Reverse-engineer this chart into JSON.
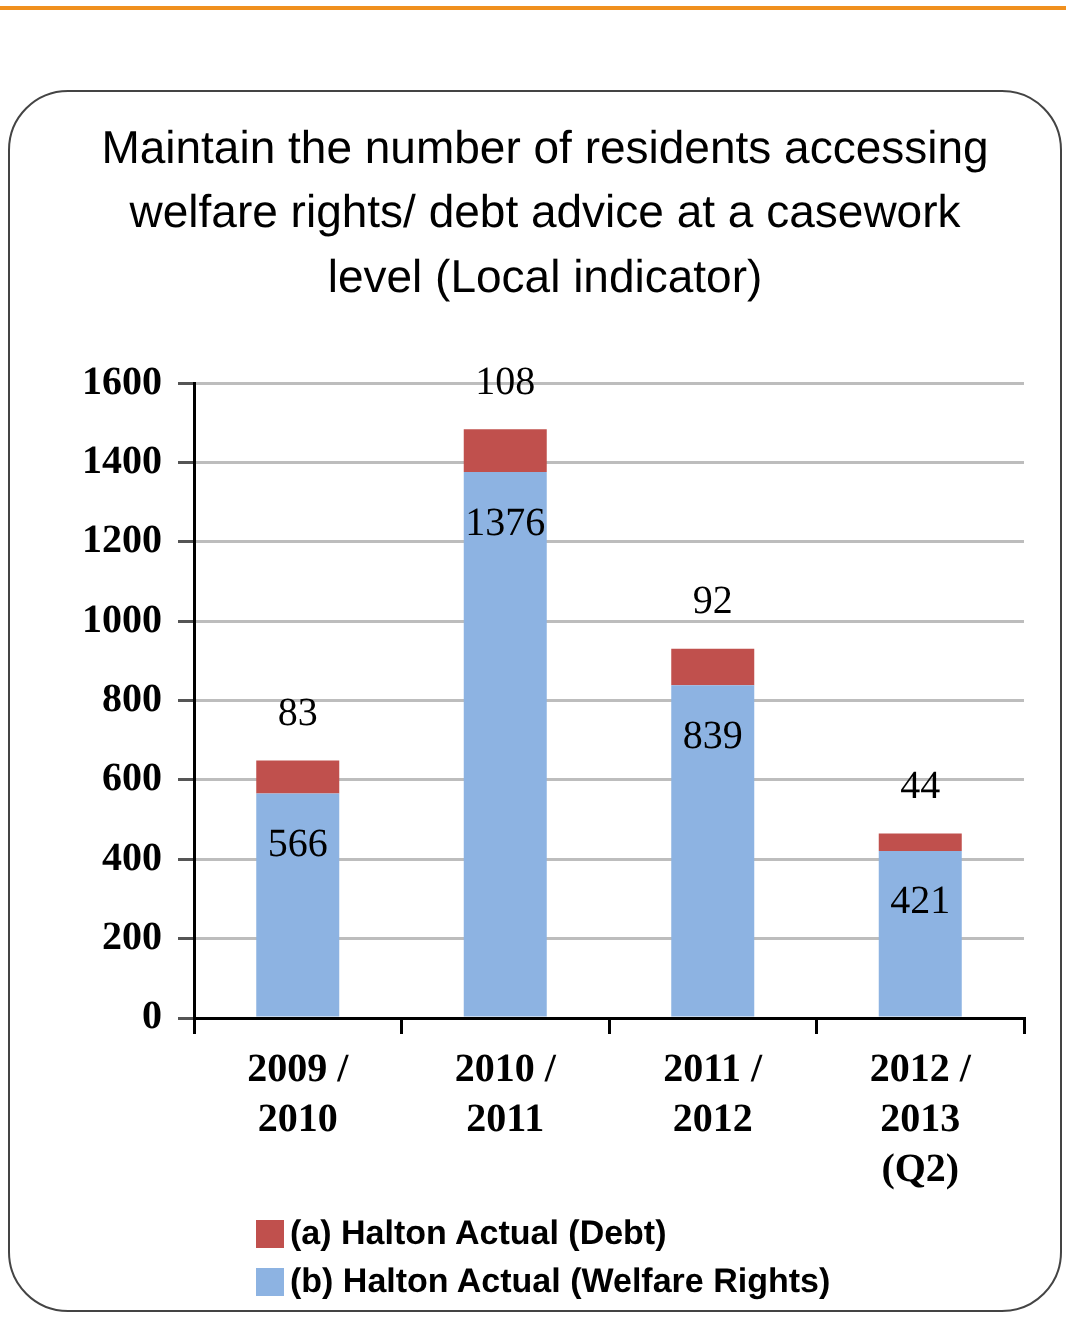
{
  "chart_data": {
    "type": "bar",
    "title": "Maintain the number of residents accessing welfare rights/ debt advice at a casework level (Local indicator)",
    "categories": [
      "2009 / 2010",
      "2010 / 2011",
      "2011 / 2012",
      "2012 / 2013 (Q2)"
    ],
    "series": [
      {
        "name": "(b) Halton Actual (Welfare Rights)",
        "color": "#8db3e2",
        "values": [
          566,
          1376,
          839,
          421
        ]
      },
      {
        "name": "(a) Halton Actual (Debt)",
        "color": "#c0504d",
        "values": [
          83,
          108,
          92,
          44
        ]
      }
    ],
    "stacked": true,
    "ylim": [
      0,
      1600
    ],
    "yticks": [
      0,
      200,
      400,
      600,
      800,
      1000,
      1200,
      1400,
      1600
    ],
    "grid": "y",
    "legend": "bottom",
    "data_labels": true
  }
}
